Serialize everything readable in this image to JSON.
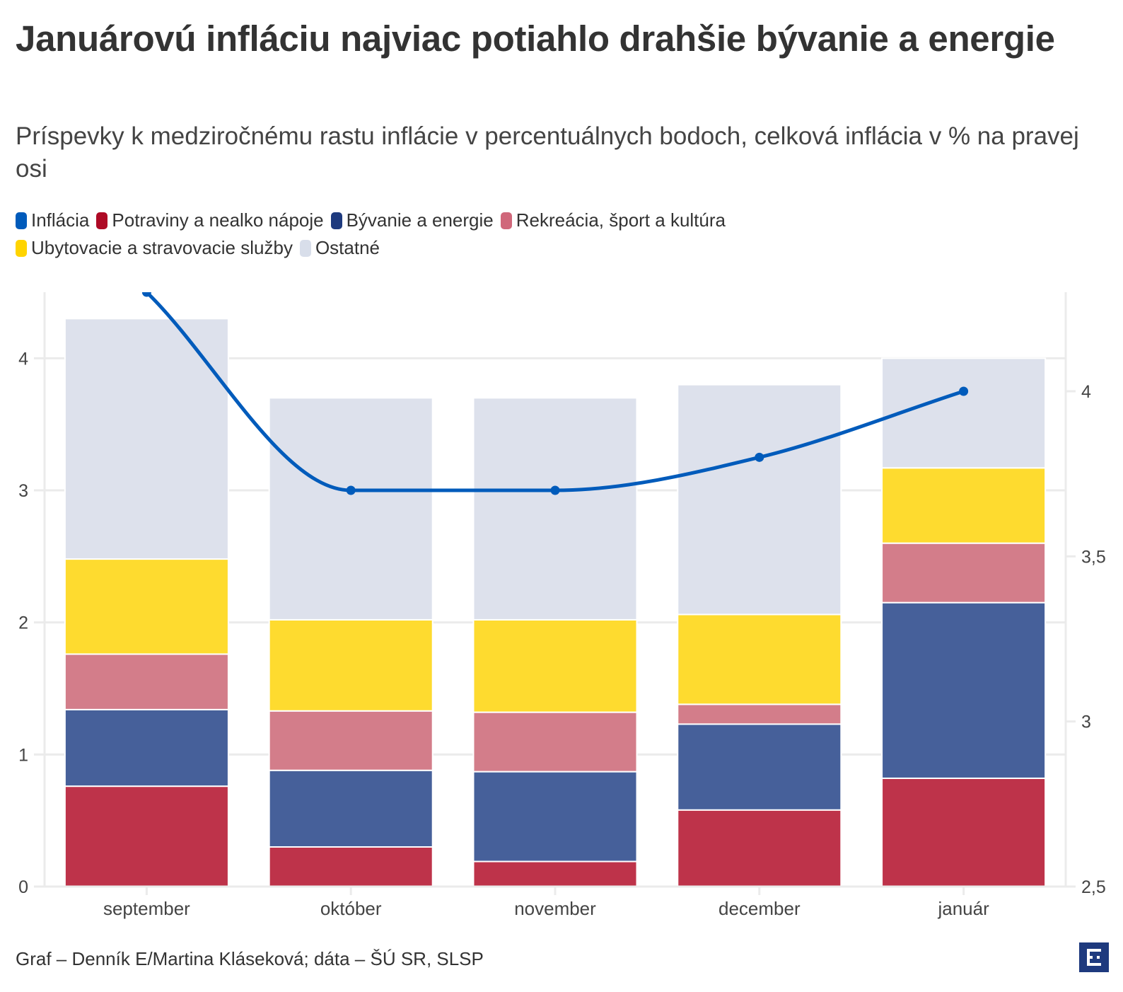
{
  "header": {
    "title": "Januárovú infláciu najviac potiahlo drahšie bývanie a energie",
    "subtitle": "Príspevky k medziročnému rastu inflácie v percentuálnych bodoch, celková inflácia v % na pravej osi"
  },
  "legend": [
    {
      "label": "Inflácia",
      "color": "#005BBB"
    },
    {
      "label": "Potraviny a nealko nápoje",
      "color": "#AE0A25"
    },
    {
      "label": "Bývanie a energie",
      "color": "#1E3A7E"
    },
    {
      "label": "Rekreácia, šport a kultúra",
      "color": "#D0677A"
    },
    {
      "label": "Ubytovacie a stravovacie služby",
      "color": "#FFD400"
    },
    {
      "label": "Ostatné",
      "color": "#D8DEEA"
    }
  ],
  "footer": {
    "credit": "Graf – Denník E/Martina Kláseková; dáta – ŠÚ SR, SLSP",
    "logo_icon": "dennik-e-logo-icon"
  },
  "chart_data": {
    "type": "bar",
    "stacked": true,
    "title": "Januárovú infláciu najviac potiahlo drahšie bývanie a energie",
    "subtitle": "Príspevky k medziročnému rastu inflácie v percentuálnych bodoch, celková inflácia v % na pravej osi",
    "categories": [
      "september",
      "október",
      "november",
      "december",
      "január"
    ],
    "series": [
      {
        "name": "Potraviny a nealko nápoje",
        "type": "bar",
        "axis": "left",
        "color": "#BE334A",
        "values": [
          0.76,
          0.3,
          0.19,
          0.58,
          0.82
        ]
      },
      {
        "name": "Bývanie a energie",
        "type": "bar",
        "axis": "left",
        "color": "#46609A",
        "values": [
          0.58,
          0.58,
          0.68,
          0.65,
          1.33
        ]
      },
      {
        "name": "Rekreácia, šport a kultúra",
        "type": "bar",
        "axis": "left",
        "color": "#D37D8A",
        "values": [
          0.42,
          0.45,
          0.45,
          0.15,
          0.45
        ]
      },
      {
        "name": "Ubytovacie a stravovacie služby",
        "type": "bar",
        "axis": "left",
        "color": "#FEDB2F",
        "values": [
          0.72,
          0.69,
          0.7,
          0.68,
          0.57
        ]
      },
      {
        "name": "Ostatné",
        "type": "bar",
        "axis": "left",
        "color": "#DDE1EC",
        "values": [
          1.82,
          1.68,
          1.68,
          1.74,
          0.83
        ]
      },
      {
        "name": "Inflácia",
        "type": "line",
        "axis": "right",
        "color": "#005BBB",
        "values": [
          4.3,
          3.7,
          3.7,
          3.8,
          4.0
        ]
      }
    ],
    "left_axis": {
      "label": "",
      "range": [
        0,
        4.5
      ],
      "ticks": [
        0,
        1,
        2,
        3,
        4
      ],
      "tick_labels": [
        "0",
        "1",
        "2",
        "3",
        "4"
      ]
    },
    "right_axis": {
      "label": "",
      "range": [
        2.5,
        4.3
      ],
      "ticks": [
        2.5,
        3,
        3.5,
        4
      ],
      "tick_labels": [
        "2,5",
        "3",
        "3,5",
        "4"
      ]
    },
    "xlabel": "",
    "grid": true,
    "legend_position": "top-left"
  }
}
